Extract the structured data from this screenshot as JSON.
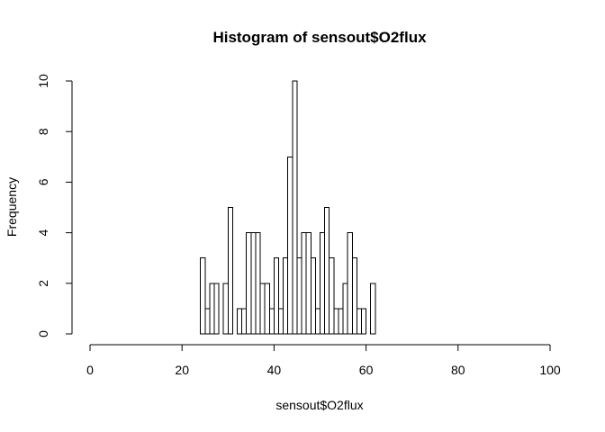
{
  "chart_data": {
    "type": "bar",
    "subtype": "histogram",
    "title": "Histogram of sensout$O2flux",
    "xlabel": "sensout$O2flux",
    "ylabel": "Frequency",
    "xlim": [
      0,
      100
    ],
    "ylim": [
      0,
      10
    ],
    "bin_width": 1,
    "x_ticks": [
      0,
      20,
      40,
      60,
      80,
      100
    ],
    "y_ticks": [
      0,
      2,
      4,
      6,
      8,
      10
    ],
    "bins_start": 0,
    "counts": [
      0,
      0,
      0,
      0,
      0,
      0,
      0,
      0,
      0,
      0,
      0,
      0,
      0,
      0,
      0,
      0,
      0,
      0,
      0,
      0,
      0,
      0,
      0,
      0,
      3,
      1,
      2,
      2,
      0,
      2,
      5,
      0,
      1,
      1,
      4,
      4,
      4,
      2,
      2,
      1,
      3,
      1,
      3,
      7,
      10,
      3,
      4,
      4,
      3,
      1,
      4,
      5,
      3,
      1,
      1,
      2,
      4,
      3,
      1,
      1,
      0,
      2,
      0,
      0,
      0,
      0,
      0,
      0,
      0,
      0,
      0,
      0,
      0,
      0,
      0,
      0,
      0,
      0,
      0,
      0,
      0,
      0,
      0,
      0,
      0,
      0,
      0,
      0,
      0,
      0,
      0,
      0,
      0,
      0,
      0,
      0,
      0,
      0,
      0,
      0
    ],
    "grid": false,
    "legend": "none",
    "bar_fill": "#ffffff",
    "bar_stroke": "#000000"
  }
}
